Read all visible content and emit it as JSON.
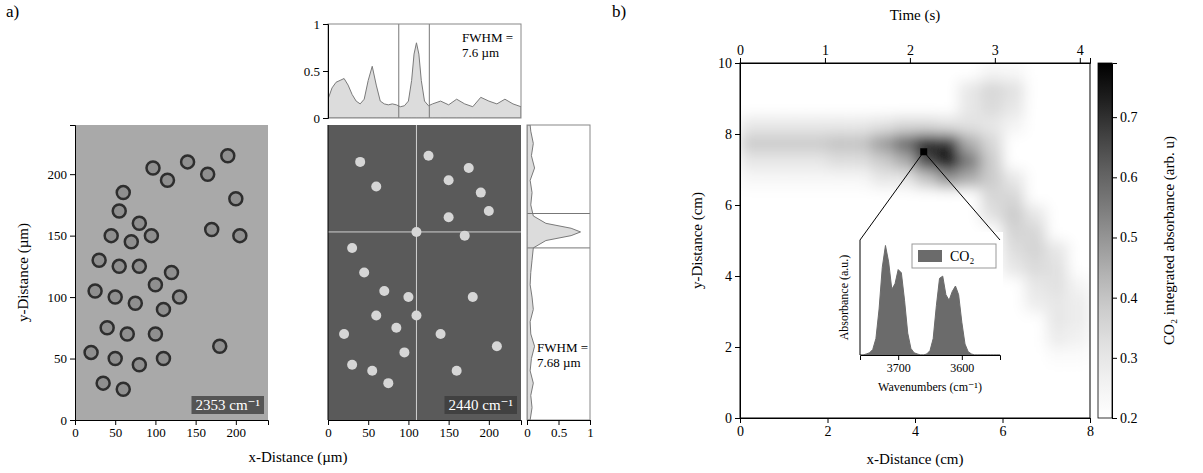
{
  "chart_data": [
    {
      "type": "image",
      "panel": "a)",
      "annotation": "2353 cm⁻¹",
      "x_label": "x-Distance (µm)",
      "y_label": "y-Distance (µm)",
      "xlim": [
        0,
        240
      ],
      "ylim": [
        0,
        240
      ],
      "xticks": [
        0,
        50,
        100,
        150,
        200
      ],
      "yticks": [
        0,
        50,
        100,
        150,
        200
      ],
      "marker": "ring",
      "points": {
        "x": [
          97,
          115,
          140,
          165,
          60,
          55,
          80,
          45,
          70,
          95,
          30,
          55,
          80,
          100,
          120,
          25,
          50,
          75,
          110,
          130,
          40,
          65,
          100,
          20,
          50,
          80,
          35,
          60,
          110,
          190,
          200,
          170,
          205,
          180
        ],
        "y": [
          205,
          195,
          210,
          200,
          185,
          170,
          160,
          150,
          145,
          150,
          130,
          125,
          125,
          110,
          120,
          105,
          100,
          95,
          90,
          100,
          75,
          70,
          70,
          55,
          50,
          45,
          30,
          25,
          50,
          215,
          180,
          155,
          150,
          60
        ]
      }
    },
    {
      "type": "image",
      "annotation": "2440 cm⁻¹",
      "xlim": [
        0,
        240
      ],
      "ylim": [
        0,
        240
      ],
      "xticks": [
        0,
        50,
        100,
        150,
        200
      ],
      "tick_labels": "x",
      "marker": "dot",
      "crosshair": {
        "x": 110,
        "y": 153
      },
      "points": {
        "x": [
          40,
          60,
          125,
          150,
          175,
          190,
          200,
          150,
          170,
          30,
          45,
          70,
          100,
          60,
          85,
          110,
          20,
          30,
          55,
          75,
          95,
          140,
          160,
          180,
          210,
          110
        ],
        "y": [
          210,
          190,
          215,
          195,
          205,
          185,
          170,
          165,
          150,
          140,
          120,
          105,
          100,
          85,
          75,
          85,
          70,
          45,
          40,
          30,
          55,
          70,
          40,
          100,
          60,
          153
        ]
      }
    },
    {
      "type": "area",
      "annotation": "FWHM = 7.6 µm",
      "xlim": [
        0,
        240
      ],
      "ylim": [
        0,
        1
      ],
      "yticks": [
        0,
        0.5,
        1
      ],
      "tick_labels": "y",
      "window": [
        88,
        126
      ],
      "x": [
        0,
        5,
        10,
        15,
        20,
        25,
        30,
        35,
        40,
        45,
        50,
        55,
        60,
        65,
        70,
        75,
        80,
        85,
        90,
        95,
        100,
        104,
        107,
        110,
        113,
        116,
        120,
        125,
        130,
        140,
        150,
        160,
        170,
        180,
        190,
        200,
        210,
        220,
        230,
        240
      ],
      "values": [
        0.2,
        0.32,
        0.38,
        0.4,
        0.42,
        0.35,
        0.25,
        0.18,
        0.15,
        0.2,
        0.4,
        0.55,
        0.35,
        0.18,
        0.15,
        0.14,
        0.15,
        0.14,
        0.12,
        0.13,
        0.18,
        0.4,
        0.68,
        0.8,
        0.68,
        0.4,
        0.18,
        0.13,
        0.15,
        0.18,
        0.14,
        0.2,
        0.15,
        0.12,
        0.22,
        0.18,
        0.15,
        0.2,
        0.15,
        0.12
      ]
    },
    {
      "type": "area",
      "orientation": "horizontal",
      "annotation": "FWHM = 7.68 µm",
      "xlim": [
        0,
        240
      ],
      "ylim": [
        0,
        1
      ],
      "yticks": [
        0,
        0.5,
        1
      ],
      "tick_labels": "y",
      "window": [
        140,
        168
      ],
      "x": [
        0,
        10,
        20,
        30,
        40,
        50,
        60,
        70,
        80,
        90,
        100,
        110,
        120,
        130,
        140,
        146,
        150,
        153,
        156,
        160,
        166,
        175,
        185,
        195,
        205,
        215,
        225,
        235,
        240
      ],
      "values": [
        0.05,
        0.08,
        0.06,
        0.1,
        0.05,
        0.07,
        0.12,
        0.06,
        0.05,
        0.1,
        0.08,
        0.05,
        0.06,
        0.08,
        0.1,
        0.3,
        0.7,
        0.85,
        0.7,
        0.3,
        0.1,
        0.06,
        0.08,
        0.05,
        0.12,
        0.07,
        0.1,
        0.06,
        0.05
      ]
    },
    {
      "type": "heatmap",
      "panel": "b)",
      "x_label": "x-Distance (cm)",
      "y_label": "y-Distance (cm)",
      "x2_label": "Time (s)",
      "xlim": [
        0,
        8
      ],
      "ylim": [
        0,
        10
      ],
      "xticks": [
        0,
        2,
        4,
        6,
        8
      ],
      "yticks": [
        0,
        2,
        4,
        6,
        8,
        10
      ],
      "x2lim": [
        0,
        4.12
      ],
      "x2ticks": [
        0,
        1,
        2,
        3,
        4
      ],
      "highlight": {
        "x": 4.2,
        "y": 7.5
      },
      "cell_x": [
        0,
        0.5,
        1,
        1.5,
        2,
        2.5,
        3,
        3.5,
        4,
        4.5,
        5,
        5.5,
        6,
        6.5,
        7,
        7.5
      ],
      "cell_y": [
        0,
        0.5,
        1,
        1.5,
        2,
        2.5,
        3,
        3.5,
        4,
        4.5,
        5,
        5.5,
        6,
        6.5,
        7,
        7.5,
        8,
        8.5,
        9,
        9.5
      ],
      "values": [
        [
          0.2,
          0.2,
          0.2,
          0.2,
          0.2,
          0.2,
          0.2,
          0.2,
          0.2,
          0.2,
          0.2,
          0.2,
          0.2,
          0.2,
          0.2,
          0.2
        ],
        [
          0.2,
          0.2,
          0.2,
          0.2,
          0.2,
          0.2,
          0.2,
          0.2,
          0.2,
          0.2,
          0.2,
          0.2,
          0.2,
          0.2,
          0.2,
          0.2
        ],
        [
          0.2,
          0.2,
          0.2,
          0.2,
          0.2,
          0.2,
          0.2,
          0.2,
          0.2,
          0.2,
          0.2,
          0.2,
          0.2,
          0.2,
          0.2,
          0.2
        ],
        [
          0.2,
          0.2,
          0.2,
          0.2,
          0.2,
          0.2,
          0.2,
          0.2,
          0.2,
          0.2,
          0.2,
          0.2,
          0.2,
          0.2,
          0.22,
          0.22
        ],
        [
          0.2,
          0.2,
          0.2,
          0.2,
          0.2,
          0.2,
          0.2,
          0.2,
          0.2,
          0.2,
          0.2,
          0.2,
          0.2,
          0.2,
          0.28,
          0.26
        ],
        [
          0.2,
          0.2,
          0.2,
          0.2,
          0.2,
          0.2,
          0.2,
          0.2,
          0.2,
          0.2,
          0.2,
          0.2,
          0.2,
          0.2,
          0.3,
          0.28
        ],
        [
          0.2,
          0.2,
          0.2,
          0.2,
          0.2,
          0.2,
          0.2,
          0.2,
          0.2,
          0.2,
          0.2,
          0.2,
          0.2,
          0.28,
          0.3,
          0.28
        ],
        [
          0.2,
          0.2,
          0.2,
          0.2,
          0.2,
          0.2,
          0.2,
          0.2,
          0.2,
          0.2,
          0.2,
          0.2,
          0.2,
          0.3,
          0.32,
          0.25
        ],
        [
          0.2,
          0.2,
          0.2,
          0.2,
          0.2,
          0.2,
          0.2,
          0.2,
          0.2,
          0.2,
          0.2,
          0.2,
          0.3,
          0.34,
          0.32,
          0.2
        ],
        [
          0.2,
          0.2,
          0.2,
          0.2,
          0.2,
          0.2,
          0.2,
          0.2,
          0.2,
          0.2,
          0.2,
          0.2,
          0.33,
          0.36,
          0.3,
          0.2
        ],
        [
          0.2,
          0.2,
          0.2,
          0.2,
          0.2,
          0.2,
          0.2,
          0.2,
          0.2,
          0.2,
          0.2,
          0.2,
          0.36,
          0.35,
          0.2,
          0.2
        ],
        [
          0.2,
          0.2,
          0.2,
          0.2,
          0.2,
          0.2,
          0.2,
          0.2,
          0.2,
          0.2,
          0.2,
          0.32,
          0.38,
          0.3,
          0.2,
          0.2
        ],
        [
          0.2,
          0.2,
          0.2,
          0.2,
          0.2,
          0.2,
          0.2,
          0.2,
          0.2,
          0.2,
          0.2,
          0.35,
          0.35,
          0.2,
          0.2,
          0.2
        ],
        [
          0.24,
          0.24,
          0.24,
          0.24,
          0.24,
          0.24,
          0.3,
          0.3,
          0.4,
          0.5,
          0.45,
          0.38,
          0.3,
          0.2,
          0.2,
          0.2
        ],
        [
          0.3,
          0.3,
          0.3,
          0.3,
          0.33,
          0.33,
          0.38,
          0.45,
          0.65,
          0.78,
          0.55,
          0.38,
          0.2,
          0.2,
          0.2,
          0.2
        ],
        [
          0.38,
          0.38,
          0.38,
          0.38,
          0.4,
          0.4,
          0.48,
          0.58,
          0.72,
          0.7,
          0.45,
          0.35,
          0.2,
          0.2,
          0.2,
          0.2
        ],
        [
          0.3,
          0.3,
          0.3,
          0.3,
          0.3,
          0.3,
          0.32,
          0.35,
          0.35,
          0.33,
          0.32,
          0.3,
          0.25,
          0.2,
          0.2,
          0.2
        ],
        [
          0.2,
          0.2,
          0.2,
          0.2,
          0.2,
          0.2,
          0.2,
          0.2,
          0.2,
          0.2,
          0.3,
          0.34,
          0.3,
          0.2,
          0.2,
          0.2
        ],
        [
          0.2,
          0.2,
          0.2,
          0.2,
          0.2,
          0.2,
          0.2,
          0.2,
          0.2,
          0.2,
          0.3,
          0.35,
          0.32,
          0.2,
          0.2,
          0.2
        ],
        [
          0.2,
          0.2,
          0.2,
          0.2,
          0.2,
          0.2,
          0.2,
          0.2,
          0.2,
          0.2,
          0.2,
          0.25,
          0.24,
          0.2,
          0.2,
          0.2
        ]
      ],
      "colorbar": {
        "label": "CO₂ integrated absorbance (arb. u)",
        "range": [
          0.2,
          0.79
        ],
        "ticks": [
          0.2,
          0.3,
          0.4,
          0.5,
          0.6,
          0.7
        ]
      }
    },
    {
      "type": "area",
      "x_label": "Wavenumbers (cm⁻¹)",
      "y_label": "Absorbance (a.u.)",
      "xlim": [
        3760,
        3540
      ],
      "ylim": [
        0,
        1.05
      ],
      "xticks": [
        3700,
        3600
      ],
      "tick_labels": "x",
      "legend": "upper right",
      "x": [
        3760,
        3755,
        3750,
        3745,
        3740,
        3735,
        3730,
        3725,
        3720,
        3715,
        3710,
        3705,
        3700,
        3695,
        3690,
        3685,
        3680,
        3675,
        3670,
        3665,
        3660,
        3655,
        3650,
        3645,
        3640,
        3635,
        3630,
        3625,
        3620,
        3615,
        3610,
        3605,
        3600,
        3595,
        3590,
        3585,
        3580,
        3575,
        3570,
        3565,
        3560,
        3555,
        3550,
        3545,
        3540
      ],
      "series": [
        {
          "name": "CO₂",
          "color": "#6b6b6b",
          "values": [
            0,
            0,
            0.01,
            0.02,
            0.05,
            0.15,
            0.42,
            0.8,
            1,
            0.85,
            0.6,
            0.65,
            0.78,
            0.75,
            0.5,
            0.2,
            0.06,
            0.02,
            0.01,
            0,
            0,
            0.01,
            0.04,
            0.15,
            0.45,
            0.7,
            0.72,
            0.55,
            0.5,
            0.58,
            0.63,
            0.55,
            0.3,
            0.1,
            0.03,
            0.01,
            0,
            0,
            0,
            0,
            0,
            0,
            0,
            0,
            0
          ]
        }
      ]
    }
  ]
}
